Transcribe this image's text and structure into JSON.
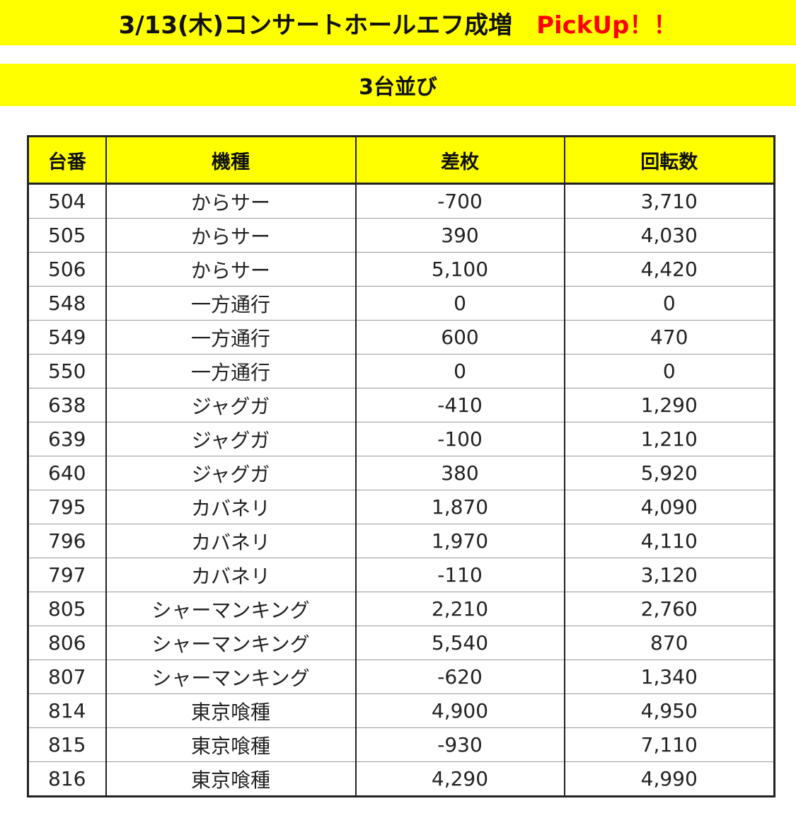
{
  "header": {
    "title": "3/13(木)コンサートホールエフ成増",
    "pickup": "PickUp！！",
    "subtitle": "3台並び"
  },
  "colors": {
    "highlight": "#ffff00",
    "accent": "#ff0000"
  },
  "table": {
    "columns": [
      "台番",
      "機種",
      "差枚",
      "回転数"
    ],
    "rows": [
      [
        "504",
        "からサー",
        "-700",
        "3,710"
      ],
      [
        "505",
        "からサー",
        "390",
        "4,030"
      ],
      [
        "506",
        "からサー",
        "5,100",
        "4,420"
      ],
      [
        "548",
        "一方通行",
        "0",
        "0"
      ],
      [
        "549",
        "一方通行",
        "600",
        "470"
      ],
      [
        "550",
        "一方通行",
        "0",
        "0"
      ],
      [
        "638",
        "ジャグガ",
        "-410",
        "1,290"
      ],
      [
        "639",
        "ジャグガ",
        "-100",
        "1,210"
      ],
      [
        "640",
        "ジャグガ",
        "380",
        "5,920"
      ],
      [
        "795",
        "カバネリ",
        "1,870",
        "4,090"
      ],
      [
        "796",
        "カバネリ",
        "1,970",
        "4,110"
      ],
      [
        "797",
        "カバネリ",
        "-110",
        "3,120"
      ],
      [
        "805",
        "シャーマンキング",
        "2,210",
        "2,760"
      ],
      [
        "806",
        "シャーマンキング",
        "5,540",
        "870"
      ],
      [
        "807",
        "シャーマンキング",
        "-620",
        "1,340"
      ],
      [
        "814",
        "東京喰種",
        "4,900",
        "4,950"
      ],
      [
        "815",
        "東京喰種",
        "-930",
        "7,110"
      ],
      [
        "816",
        "東京喰種",
        "4,290",
        "4,990"
      ]
    ]
  }
}
